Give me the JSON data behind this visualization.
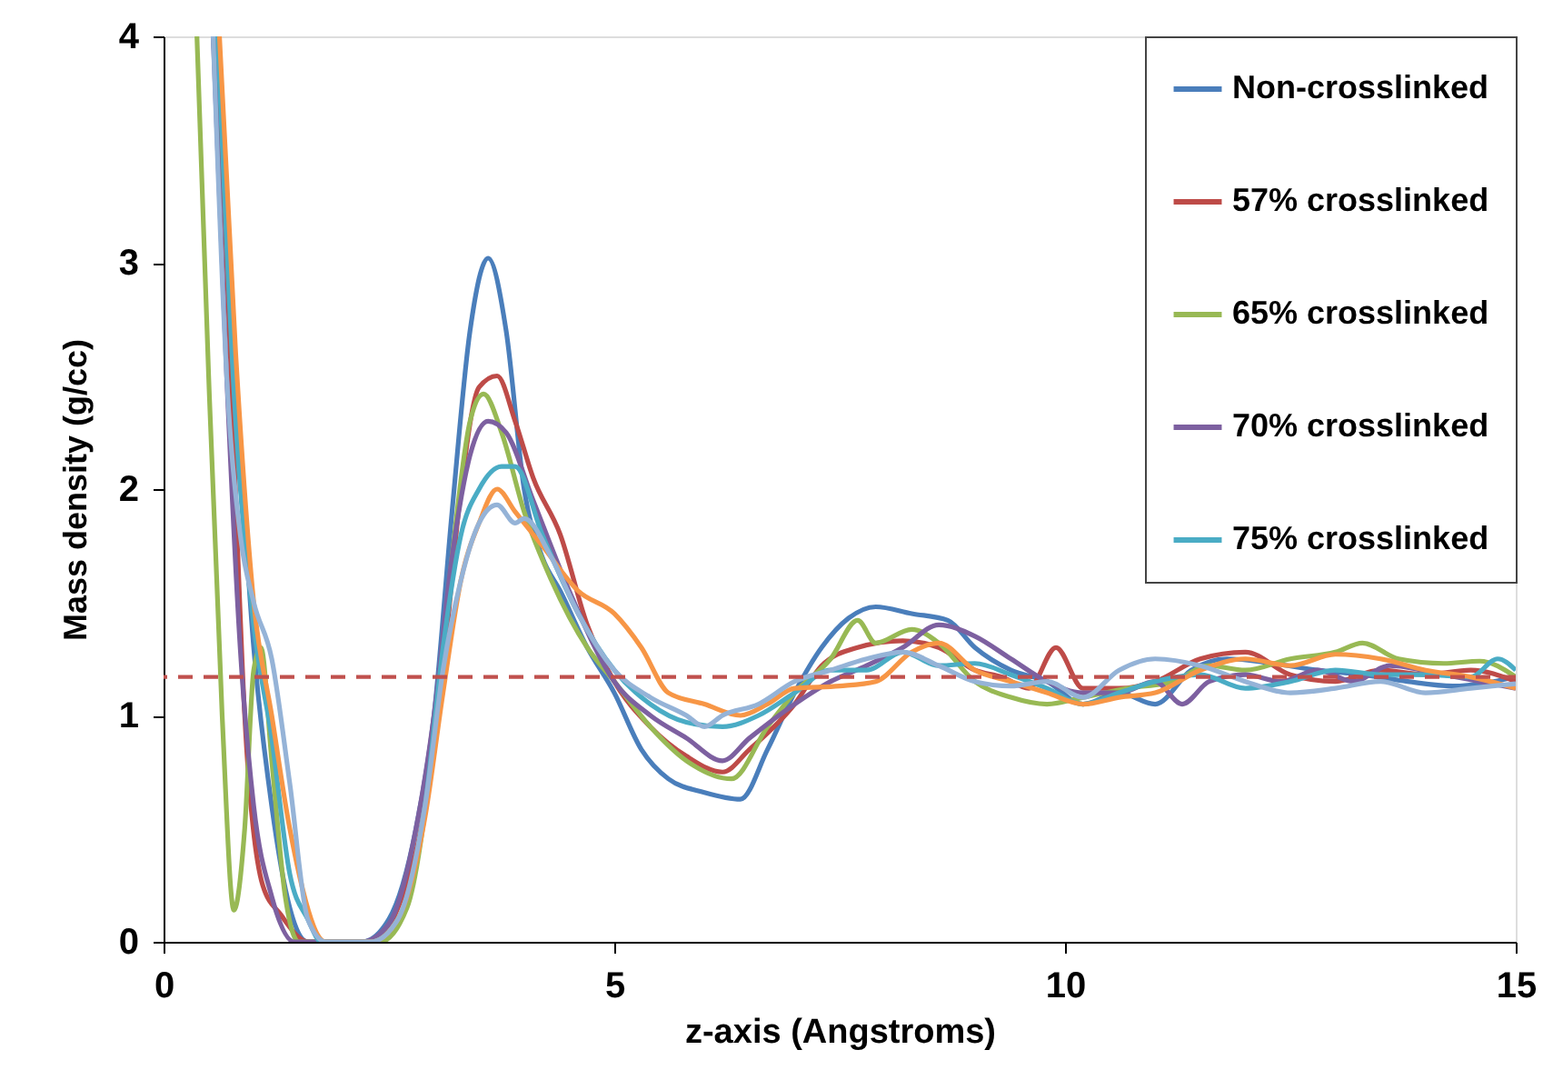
{
  "chart_data": {
    "type": "line",
    "xlabel": "z-axis (Angstroms)",
    "ylabel": "Mass density (g/cc)",
    "xlim": [
      0,
      15
    ],
    "xticks": [
      0,
      5,
      10,
      15
    ],
    "ylim": [
      0,
      4
    ],
    "yticks": [
      0,
      1,
      2,
      3,
      4
    ],
    "legend": "top right",
    "line_style": "solid",
    "ref_lines": [
      {
        "axis": "y",
        "value": 1.17,
        "color": "#c0504d",
        "line_style": "dashed"
      }
    ],
    "series": [
      {
        "name": "Non-crosslinked",
        "color": "#4a7ebb",
        "x": [
          0.55,
          0.8,
          1.0,
          1.2,
          1.4,
          1.6,
          2.2,
          2.5,
          2.8,
          3.0,
          3.2,
          3.4,
          3.6,
          3.8,
          4.0,
          4.2,
          4.4,
          4.7,
          5.0,
          5.3,
          5.6,
          6.0,
          6.4,
          6.7,
          7.0,
          7.3,
          7.6,
          7.9,
          8.3,
          8.7,
          9.0,
          9.4,
          9.8,
          10.2,
          10.6,
          11.0,
          11.4,
          11.8,
          12.3,
          12.8,
          13.3,
          13.8,
          14.3,
          15.0
        ],
        "values": [
          4,
          2.5,
          1.3,
          0.6,
          0.15,
          0,
          0,
          0.1,
          0.5,
          1.0,
          1.9,
          2.7,
          3.02,
          2.7,
          2.0,
          1.7,
          1.55,
          1.3,
          1.1,
          0.85,
          0.72,
          0.66,
          0.63,
          0.85,
          1.1,
          1.3,
          1.43,
          1.48,
          1.45,
          1.42,
          1.3,
          1.2,
          1.15,
          1.05,
          1.1,
          1.05,
          1.2,
          1.25,
          1.23,
          1.2,
          1.18,
          1.15,
          1.13,
          1.17
        ]
      },
      {
        "name": "57% crosslinked",
        "color": "#be4b48",
        "x": [
          0.6,
          0.75,
          0.9,
          1.1,
          1.3,
          1.6,
          2.3,
          2.6,
          2.9,
          3.1,
          3.3,
          3.5,
          3.7,
          3.9,
          4.1,
          4.4,
          4.7,
          5.0,
          5.4,
          5.8,
          6.2,
          6.5,
          7.0,
          7.3,
          7.7,
          8.2,
          8.6,
          9.0,
          9.3,
          9.6,
          9.9,
          10.2,
          10.6,
          11.0,
          11.5,
          12.0,
          12.5,
          13.0,
          13.5,
          14.0,
          14.5,
          15.0
        ],
        "values": [
          4,
          2.5,
          1.0,
          0.25,
          0.12,
          0,
          0,
          0.15,
          0.6,
          1.2,
          2.0,
          2.45,
          2.5,
          2.3,
          2.05,
          1.8,
          1.4,
          1.15,
          0.95,
          0.82,
          0.75,
          0.85,
          1.05,
          1.22,
          1.3,
          1.33,
          1.3,
          1.2,
          1.17,
          1.12,
          1.3,
          1.12,
          1.12,
          1.15,
          1.25,
          1.28,
          1.18,
          1.15,
          1.2,
          1.18,
          1.2,
          1.15
        ]
      },
      {
        "name": "65% crosslinked",
        "color": "#98b954",
        "x": [
          0.37,
          0.5,
          0.65,
          0.78,
          0.9,
          1.0,
          1.08,
          1.2,
          1.35,
          1.5,
          2.4,
          2.7,
          3.0,
          3.2,
          3.4,
          3.55,
          3.75,
          4.0,
          4.3,
          4.7,
          5.0,
          5.4,
          5.8,
          6.3,
          6.7,
          7.0,
          7.4,
          7.7,
          7.9,
          8.3,
          8.6,
          9.0,
          9.4,
          9.8,
          10.2,
          10.7,
          11.2,
          11.6,
          12.0,
          12.5,
          13.0,
          13.3,
          13.7,
          14.2,
          14.6,
          15.0
        ],
        "values": [
          4,
          2.5,
          1.0,
          0.14,
          0.5,
          1.2,
          1.3,
          0.8,
          0.2,
          0,
          0,
          0.15,
          0.9,
          1.7,
          2.3,
          2.42,
          2.25,
          1.9,
          1.6,
          1.3,
          1.15,
          0.95,
          0.8,
          0.72,
          0.95,
          1.1,
          1.25,
          1.42,
          1.32,
          1.38,
          1.32,
          1.15,
          1.08,
          1.05,
          1.08,
          1.12,
          1.15,
          1.22,
          1.2,
          1.25,
          1.28,
          1.32,
          1.25,
          1.23,
          1.24,
          1.17
        ]
      },
      {
        "name": "70% crosslinked",
        "color": "#7d60a0",
        "x": [
          0.55,
          0.7,
          0.85,
          1.0,
          1.2,
          1.45,
          2.2,
          2.5,
          2.8,
          3.0,
          3.2,
          3.4,
          3.6,
          3.8,
          4.1,
          4.5,
          5.0,
          5.4,
          5.8,
          6.2,
          6.5,
          7.0,
          7.4,
          7.8,
          8.2,
          8.6,
          9.0,
          9.4,
          9.8,
          10.2,
          10.6,
          11.0,
          11.3,
          11.6,
          12.0,
          12.4,
          12.8,
          13.2,
          13.6,
          14.2,
          14.6,
          15.0
        ],
        "values": [
          4,
          2.5,
          1.3,
          0.6,
          0.2,
          0,
          0,
          0.08,
          0.5,
          1.0,
          1.7,
          2.15,
          2.3,
          2.25,
          1.95,
          1.55,
          1.15,
          1.0,
          0.9,
          0.8,
          0.9,
          1.05,
          1.15,
          1.22,
          1.3,
          1.4,
          1.35,
          1.25,
          1.15,
          1.1,
          1.1,
          1.15,
          1.05,
          1.15,
          1.18,
          1.15,
          1.2,
          1.15,
          1.22,
          1.18,
          1.15,
          1.12
        ]
      },
      {
        "name": "75% crosslinked",
        "color": "#4aacc5",
        "x": [
          0.6,
          0.8,
          1.0,
          1.2,
          1.4,
          1.6,
          1.75,
          2.3,
          2.6,
          2.9,
          3.1,
          3.3,
          3.5,
          3.75,
          3.9,
          4.2,
          4.6,
          5.0,
          5.4,
          5.8,
          6.2,
          6.6,
          7.0,
          7.4,
          7.8,
          8.2,
          8.6,
          9.0,
          9.4,
          9.8,
          10.2,
          10.6,
          11.0,
          11.5,
          12.0,
          12.5,
          13.0,
          13.5,
          14.0,
          14.5,
          14.8,
          15.0
        ],
        "values": [
          4,
          2.3,
          1.4,
          0.9,
          0.3,
          0.1,
          0,
          0,
          0.1,
          0.6,
          1.3,
          1.8,
          2.0,
          2.1,
          2.1,
          1.8,
          1.45,
          1.2,
          1.05,
          0.97,
          0.95,
          1.0,
          1.1,
          1.2,
          1.2,
          1.28,
          1.22,
          1.23,
          1.18,
          1.12,
          1.05,
          1.1,
          1.15,
          1.18,
          1.12,
          1.15,
          1.2,
          1.18,
          1.18,
          1.17,
          1.25,
          1.2
        ]
      },
      {
        "color": "#f79646",
        "x": [
          0.62,
          0.8,
          1.0,
          1.2,
          1.4,
          1.8,
          2.3,
          2.6,
          2.9,
          3.1,
          3.3,
          3.5,
          3.7,
          3.9,
          4.2,
          4.6,
          5.0,
          5.3,
          5.6,
          6.0,
          6.4,
          6.7,
          7.0,
          7.5,
          7.9,
          8.3,
          8.6,
          9.0,
          9.4,
          9.8,
          10.2,
          10.6,
          11.0,
          11.5,
          12.0,
          12.5,
          13.0,
          13.5,
          14.0,
          14.5,
          15.0
        ],
        "values": [
          4,
          2.6,
          1.5,
          1.0,
          0.5,
          0,
          0,
          0.1,
          0.55,
          1.1,
          1.6,
          1.85,
          2.0,
          1.9,
          1.75,
          1.55,
          1.45,
          1.3,
          1.1,
          1.05,
          1.0,
          1.05,
          1.12,
          1.13,
          1.15,
          1.28,
          1.32,
          1.2,
          1.15,
          1.1,
          1.05,
          1.08,
          1.1,
          1.2,
          1.25,
          1.22,
          1.27,
          1.25,
          1.2,
          1.17,
          1.12
        ]
      },
      {
        "color": "#95b3d7",
        "x": [
          0.55,
          0.7,
          0.85,
          1.0,
          1.2,
          1.4,
          1.6,
          1.8,
          2.3,
          2.6,
          2.9,
          3.1,
          3.3,
          3.5,
          3.7,
          3.9,
          4.0,
          4.3,
          4.6,
          5.0,
          5.4,
          5.8,
          6.0,
          6.2,
          6.6,
          7.0,
          7.4,
          7.8,
          8.2,
          8.6,
          9.0,
          9.4,
          9.8,
          10.2,
          10.6,
          11.0,
          11.5,
          12.0,
          12.5,
          13.0,
          13.5,
          14.0,
          14.5,
          15.0
        ],
        "values": [
          4,
          2.5,
          1.8,
          1.5,
          1.25,
          0.7,
          0.1,
          0,
          0,
          0.1,
          0.6,
          1.2,
          1.6,
          1.85,
          1.93,
          1.85,
          1.87,
          1.7,
          1.45,
          1.2,
          1.08,
          1.0,
          0.95,
          1.0,
          1.05,
          1.15,
          1.2,
          1.25,
          1.28,
          1.22,
          1.15,
          1.13,
          1.15,
          1.08,
          1.2,
          1.25,
          1.22,
          1.15,
          1.1,
          1.12,
          1.15,
          1.1,
          1.12,
          1.14
        ]
      }
    ]
  }
}
